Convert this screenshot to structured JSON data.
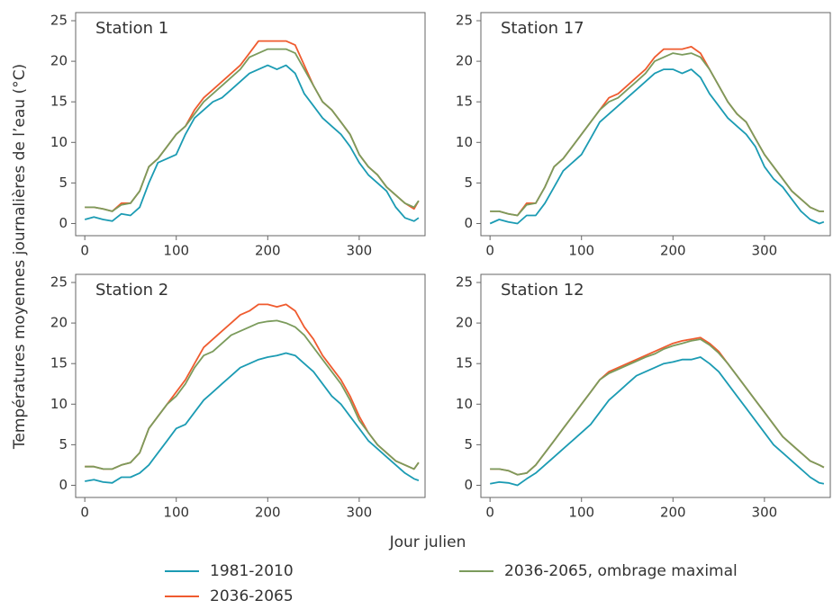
{
  "xlabel": "Jour julien",
  "ylabel": "Températures moyennes journalières de l’eau (°C)",
  "chart_data": [
    {
      "type": "line",
      "title": "Station 1",
      "xlim": [
        -10,
        372
      ],
      "ylim": [
        -1.5,
        26
      ],
      "xticks": [
        0,
        100,
        200,
        300
      ],
      "yticks": [
        0,
        5,
        10,
        15,
        20,
        25
      ],
      "x": [
        0,
        10,
        20,
        30,
        40,
        50,
        60,
        70,
        80,
        90,
        100,
        110,
        120,
        130,
        140,
        150,
        160,
        170,
        180,
        190,
        200,
        210,
        220,
        230,
        240,
        250,
        260,
        270,
        280,
        290,
        300,
        310,
        320,
        330,
        340,
        350,
        360,
        365
      ],
      "series": [
        {
          "name": "1981-2010",
          "color": "#1b9bb3",
          "values": [
            0.5,
            0.8,
            0.5,
            0.3,
            1.2,
            1.0,
            2.0,
            5.0,
            7.5,
            8.0,
            8.5,
            11.0,
            13.0,
            14.0,
            15.0,
            15.5,
            16.5,
            17.5,
            18.5,
            19.0,
            19.5,
            19.0,
            19.5,
            18.5,
            16.0,
            14.5,
            13.0,
            12.0,
            11.0,
            9.5,
            7.5,
            6.0,
            5.0,
            4.0,
            2.0,
            0.7,
            0.3,
            0.7
          ]
        },
        {
          "name": "2036-2065",
          "color": "#ef5b2f",
          "values": [
            2.0,
            2.0,
            1.8,
            1.5,
            2.5,
            2.5,
            4.0,
            7.0,
            8.0,
            9.5,
            11.0,
            12.0,
            14.0,
            15.5,
            16.5,
            17.5,
            18.5,
            19.5,
            21.0,
            22.5,
            22.5,
            22.5,
            22.5,
            22.0,
            19.5,
            17.0,
            15.0,
            14.0,
            12.5,
            11.0,
            8.5,
            7.0,
            6.0,
            4.5,
            3.5,
            2.5,
            1.8,
            2.8
          ]
        },
        {
          "name": "2036-2065, ombrage maximal",
          "color": "#7b9b5c",
          "values": [
            2.0,
            2.0,
            1.8,
            1.5,
            2.3,
            2.5,
            4.0,
            7.0,
            8.0,
            9.5,
            11.0,
            12.0,
            13.5,
            15.0,
            16.0,
            17.0,
            18.0,
            19.0,
            20.5,
            21.0,
            21.5,
            21.5,
            21.5,
            21.0,
            19.0,
            17.0,
            15.0,
            14.0,
            12.5,
            11.0,
            8.5,
            7.0,
            6.0,
            4.5,
            3.5,
            2.5,
            2.0,
            2.8
          ]
        }
      ]
    },
    {
      "type": "line",
      "title": "Station 17",
      "xlim": [
        -10,
        372
      ],
      "ylim": [
        -1.5,
        26
      ],
      "xticks": [
        0,
        100,
        200,
        300
      ],
      "yticks": [
        0,
        5,
        10,
        15,
        20,
        25
      ],
      "x": [
        0,
        10,
        20,
        30,
        40,
        50,
        60,
        70,
        80,
        90,
        100,
        110,
        120,
        130,
        140,
        150,
        160,
        170,
        180,
        190,
        200,
        210,
        220,
        230,
        240,
        250,
        260,
        270,
        280,
        290,
        300,
        310,
        320,
        330,
        340,
        350,
        360,
        365
      ],
      "series": [
        {
          "color": "#1b9bb3",
          "values": [
            0.0,
            0.5,
            0.2,
            0.0,
            1.0,
            1.0,
            2.5,
            4.5,
            6.5,
            7.5,
            8.5,
            10.5,
            12.5,
            13.5,
            14.5,
            15.5,
            16.5,
            17.5,
            18.5,
            19.0,
            19.0,
            18.5,
            19.0,
            18.0,
            16.0,
            14.5,
            13.0,
            12.0,
            11.0,
            9.5,
            7.0,
            5.5,
            4.5,
            3.0,
            1.5,
            0.5,
            0.0,
            0.2
          ]
        },
        {
          "color": "#ef5b2f",
          "values": [
            1.5,
            1.5,
            1.2,
            1.0,
            2.5,
            2.5,
            4.5,
            7.0,
            8.0,
            9.5,
            11.0,
            12.5,
            14.0,
            15.5,
            16.0,
            17.0,
            18.0,
            19.0,
            20.5,
            21.5,
            21.5,
            21.5,
            21.8,
            21.0,
            19.0,
            17.0,
            15.0,
            13.5,
            12.5,
            10.5,
            8.5,
            7.0,
            5.5,
            4.0,
            3.0,
            2.0,
            1.5,
            1.5
          ]
        },
        {
          "color": "#7b9b5c",
          "values": [
            1.5,
            1.5,
            1.2,
            1.0,
            2.3,
            2.5,
            4.5,
            7.0,
            8.0,
            9.5,
            11.0,
            12.5,
            14.0,
            15.0,
            15.5,
            16.5,
            17.5,
            18.5,
            20.0,
            20.5,
            21.0,
            20.8,
            21.0,
            20.5,
            19.0,
            17.0,
            15.0,
            13.5,
            12.5,
            10.5,
            8.5,
            7.0,
            5.5,
            4.0,
            3.0,
            2.0,
            1.5,
            1.5
          ]
        }
      ]
    },
    {
      "type": "line",
      "title": "Station 2",
      "xlim": [
        -10,
        372
      ],
      "ylim": [
        -1.5,
        26
      ],
      "xticks": [
        0,
        100,
        200,
        300
      ],
      "yticks": [
        0,
        5,
        10,
        15,
        20,
        25
      ],
      "x": [
        0,
        10,
        20,
        30,
        40,
        50,
        60,
        70,
        80,
        90,
        100,
        110,
        120,
        130,
        140,
        150,
        160,
        170,
        180,
        190,
        200,
        210,
        220,
        230,
        240,
        250,
        260,
        270,
        280,
        290,
        300,
        310,
        320,
        330,
        340,
        350,
        360,
        365
      ],
      "series": [
        {
          "color": "#1b9bb3",
          "values": [
            0.5,
            0.7,
            0.4,
            0.3,
            1.0,
            1.0,
            1.5,
            2.5,
            4.0,
            5.5,
            7.0,
            7.5,
            9.0,
            10.5,
            11.5,
            12.5,
            13.5,
            14.5,
            15.0,
            15.5,
            15.8,
            16.0,
            16.3,
            16.0,
            15.0,
            14.0,
            12.5,
            11.0,
            10.0,
            8.5,
            7.0,
            5.5,
            4.5,
            3.5,
            2.5,
            1.5,
            0.8,
            0.6
          ]
        },
        {
          "color": "#ef5b2f",
          "values": [
            2.3,
            2.3,
            2.0,
            2.0,
            2.5,
            2.8,
            4.0,
            7.0,
            8.5,
            10.0,
            11.5,
            13.0,
            15.0,
            17.0,
            18.0,
            19.0,
            20.0,
            21.0,
            21.5,
            22.3,
            22.3,
            22.0,
            22.3,
            21.5,
            19.5,
            18.0,
            16.0,
            14.5,
            13.0,
            11.0,
            8.5,
            6.5,
            5.0,
            4.0,
            3.0,
            2.5,
            2.0,
            2.8
          ]
        },
        {
          "color": "#7b9b5c",
          "values": [
            2.3,
            2.3,
            2.0,
            2.0,
            2.5,
            2.8,
            4.0,
            7.0,
            8.5,
            10.0,
            11.0,
            12.5,
            14.5,
            16.0,
            16.5,
            17.5,
            18.5,
            19.0,
            19.5,
            20.0,
            20.2,
            20.3,
            20.0,
            19.5,
            18.5,
            17.0,
            15.5,
            14.0,
            12.5,
            10.5,
            8.0,
            6.5,
            5.0,
            4.0,
            3.0,
            2.5,
            2.0,
            2.8
          ]
        }
      ]
    },
    {
      "type": "line",
      "title": "Station 12",
      "xlim": [
        -10,
        372
      ],
      "ylim": [
        -1.5,
        26
      ],
      "xticks": [
        0,
        100,
        200,
        300
      ],
      "yticks": [
        0,
        5,
        10,
        15,
        20,
        25
      ],
      "x": [
        0,
        10,
        20,
        30,
        40,
        50,
        60,
        70,
        80,
        90,
        100,
        110,
        120,
        130,
        140,
        150,
        160,
        170,
        180,
        190,
        200,
        210,
        220,
        230,
        240,
        250,
        260,
        270,
        280,
        290,
        300,
        310,
        320,
        330,
        340,
        350,
        360,
        365
      ],
      "series": [
        {
          "color": "#1b9bb3",
          "values": [
            0.2,
            0.4,
            0.3,
            0.0,
            0.8,
            1.5,
            2.5,
            3.5,
            4.5,
            5.5,
            6.5,
            7.5,
            9.0,
            10.5,
            11.5,
            12.5,
            13.5,
            14.0,
            14.5,
            15.0,
            15.2,
            15.5,
            15.5,
            15.8,
            15.0,
            14.0,
            12.5,
            11.0,
            9.5,
            8.0,
            6.5,
            5.0,
            4.0,
            3.0,
            2.0,
            1.0,
            0.3,
            0.2
          ]
        },
        {
          "color": "#ef5b2f",
          "values": [
            2.0,
            2.0,
            1.8,
            1.3,
            1.5,
            2.5,
            4.0,
            5.5,
            7.0,
            8.5,
            10.0,
            11.5,
            13.0,
            14.0,
            14.5,
            15.0,
            15.5,
            16.0,
            16.5,
            17.0,
            17.5,
            17.8,
            18.0,
            18.2,
            17.5,
            16.5,
            15.0,
            13.5,
            12.0,
            10.5,
            9.0,
            7.5,
            6.0,
            5.0,
            4.0,
            3.0,
            2.5,
            2.2
          ]
        },
        {
          "color": "#7b9b5c",
          "values": [
            2.0,
            2.0,
            1.8,
            1.3,
            1.5,
            2.5,
            4.0,
            5.5,
            7.0,
            8.5,
            10.0,
            11.5,
            13.0,
            13.8,
            14.3,
            14.8,
            15.3,
            15.8,
            16.2,
            16.8,
            17.2,
            17.5,
            17.8,
            18.0,
            17.3,
            16.3,
            15.0,
            13.5,
            12.0,
            10.5,
            9.0,
            7.5,
            6.0,
            5.0,
            4.0,
            3.0,
            2.5,
            2.2
          ]
        }
      ]
    }
  ]
}
